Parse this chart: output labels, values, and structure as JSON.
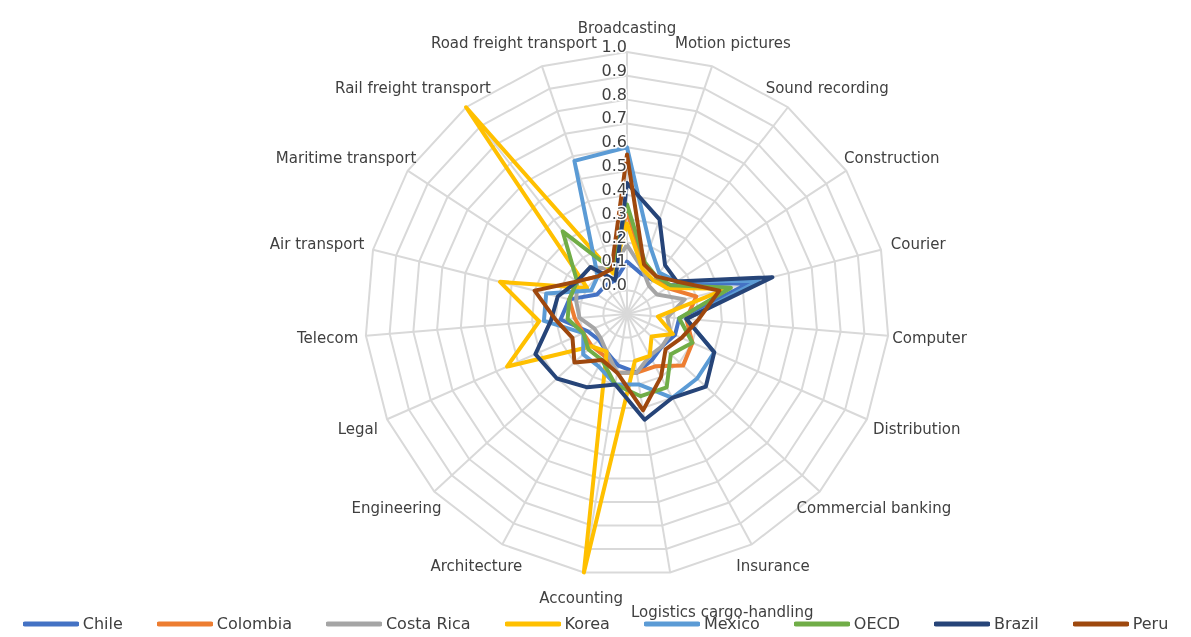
{
  "chart_data": {
    "type": "radar",
    "categories": [
      "Broadcasting",
      "Motion pictures",
      "Sound recording",
      "Construction",
      "Courier",
      "Computer",
      "Distribution",
      "Commercial banking",
      "Insurance",
      "Logistics cargo-handling",
      "Accounting",
      "Architecture",
      "Engineering",
      "Legal",
      "Telecom",
      "Air transport",
      "Maritime transport",
      "Rail freight transport",
      "Road freight transport"
    ],
    "series": [
      {
        "name": "Chile",
        "color": "#4472c4",
        "values": [
          0.12,
          0.08,
          0.08,
          0.12,
          0.43,
          0.12,
          0.12,
          0.1,
          0.12,
          0.15,
          0.12,
          0.08,
          0.06,
          0.08,
          0.18,
          0.15,
          0.05,
          0.05,
          0.05
        ]
      },
      {
        "name": "Colombia",
        "color": "#ed7d31",
        "values": [
          0.33,
          0.12,
          0.1,
          0.1,
          0.2,
          0.15,
          0.2,
          0.22,
          0.15,
          0.15,
          0.15,
          0.1,
          0.1,
          0.1,
          0.12,
          0.15,
          0.15,
          0.1,
          0.1
        ]
      },
      {
        "name": "Costa Rica",
        "color": "#a5a5a5",
        "values": [
          0.19,
          0.1,
          0.05,
          0.05,
          0.15,
          0.07,
          0.1,
          0.1,
          0.1,
          0.15,
          0.15,
          0.08,
          0.05,
          0.05,
          0.1,
          0.12,
          0.15,
          0.15,
          0.1
        ]
      },
      {
        "name": "Korea",
        "color": "#ffc000",
        "values": [
          0.28,
          0.1,
          0.08,
          0.1,
          0.33,
          0.03,
          0.11,
          0.04,
          0.1,
          0.1,
          1.0,
          0.08,
          0.1,
          0.45,
          0.27,
          0.45,
          0.1,
          1.0,
          0.08
        ]
      },
      {
        "name": "Mexico",
        "color": "#5b9bd5",
        "values": [
          0.6,
          0.2,
          0.12,
          0.15,
          0.47,
          0.15,
          0.3,
          0.3,
          0.3,
          0.2,
          0.2,
          0.15,
          0.15,
          0.1,
          0.25,
          0.25,
          0.08,
          0.1,
          0.58
        ]
      },
      {
        "name": "OECD",
        "color": "#70ad47",
        "values": [
          0.36,
          0.13,
          0.1,
          0.12,
          0.35,
          0.12,
          0.2,
          0.15,
          0.25,
          0.25,
          0.2,
          0.12,
          0.12,
          0.1,
          0.15,
          0.15,
          0.15,
          0.34,
          0.1
        ]
      },
      {
        "name": "Brazil",
        "color": "#264478",
        "values": [
          0.45,
          0.32,
          0.16,
          0.15,
          0.53,
          0.15,
          0.3,
          0.35,
          0.3,
          0.35,
          0.2,
          0.25,
          0.3,
          0.32,
          0.22,
          0.2,
          0.15,
          0.15,
          0.05
        ]
      },
      {
        "name": "Peru",
        "color": "#9e480e",
        "values": [
          0.57,
          0.12,
          0.1,
          0.15,
          0.3,
          0.2,
          0.15,
          0.12,
          0.2,
          0.31,
          0.15,
          0.12,
          0.2,
          0.15,
          0.2,
          0.3,
          0.15,
          0.1,
          0.1
        ]
      }
    ],
    "ylim": [
      -0.1,
      1.0
    ],
    "yticks": [
      {
        "value": 0,
        "label": "0.0"
      },
      0.1,
      0.2,
      0.3,
      0.4,
      0.5,
      0.6,
      0.7,
      0.8,
      0.9,
      {
        "value": 1,
        "label": "1.0"
      }
    ],
    "grid": true,
    "legend": "bottom"
  }
}
